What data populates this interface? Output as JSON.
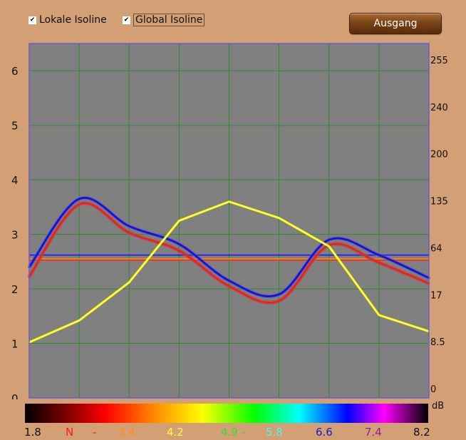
{
  "toolbar": {
    "local_isoline": {
      "label": "Lokale Isoline",
      "checked": true
    },
    "global_isoline": {
      "label": "Global Isoline",
      "checked": true
    },
    "exit_label": "Ausgang"
  },
  "chart_data": {
    "type": "line",
    "ylim": [
      0,
      6.5
    ],
    "xlim": [
      0,
      8
    ],
    "left_ticks": [
      0,
      1,
      2,
      3,
      4,
      5,
      6
    ],
    "right_ticks": [
      "0",
      "8.5",
      "17",
      "64",
      "135",
      "200",
      "240",
      "255"
    ],
    "vertical_gridlines": 8,
    "grid": true,
    "plot_bg": "#808080",
    "grid_color": "#2f8a2f",
    "series": [
      {
        "color": "#1010ff",
        "style": "curve",
        "points": [
          [
            0,
            2.4
          ],
          [
            1,
            3.65
          ],
          [
            2,
            3.15
          ],
          [
            3,
            2.82
          ],
          [
            4,
            2.15
          ],
          [
            5,
            1.9
          ],
          [
            6,
            2.9
          ],
          [
            7,
            2.62
          ],
          [
            8,
            2.2
          ]
        ]
      },
      {
        "color": "#ff1a1a",
        "style": "curve",
        "points": [
          [
            0,
            2.22
          ],
          [
            1,
            3.55
          ],
          [
            2,
            3.03
          ],
          [
            3,
            2.7
          ],
          [
            4,
            2.05
          ],
          [
            5,
            1.78
          ],
          [
            6,
            2.8
          ],
          [
            7,
            2.48
          ],
          [
            8,
            2.1
          ]
        ]
      },
      {
        "color": "#ffff22",
        "style": "polyline",
        "points": [
          [
            0,
            1.02
          ],
          [
            1,
            1.42
          ],
          [
            2,
            2.12
          ],
          [
            3,
            3.25
          ],
          [
            4,
            3.6
          ],
          [
            5,
            3.3
          ],
          [
            6,
            2.78
          ],
          [
            7,
            1.52
          ],
          [
            8,
            1.22
          ]
        ]
      }
    ],
    "isolines": [
      {
        "color": "#1a1aff",
        "y": 2.62
      },
      {
        "color": "#ff2020",
        "y": 2.53
      },
      {
        "color": "#ff8c00",
        "y": 2.55
      }
    ]
  },
  "color_scale": {
    "unit": "dB",
    "labels": [
      {
        "text": "1.8",
        "color": "#111111"
      },
      {
        "text": "N",
        "color": "#ff1a1a"
      },
      {
        "text": "-",
        "color": "#ff1a1a"
      },
      {
        "text": "3.4",
        "color": "#ff8c1a"
      },
      {
        "text": "4.2",
        "color": "#ffff33"
      },
      {
        "text": "4.9 -",
        "color": "#33dd33"
      },
      {
        "text": "5.8",
        "color": "#44ffee"
      },
      {
        "text": "6.6",
        "color": "#1a1acc"
      },
      {
        "text": "7.4",
        "color": "#9b1a9b"
      },
      {
        "text": "8.2",
        "color": "#111111"
      }
    ]
  }
}
